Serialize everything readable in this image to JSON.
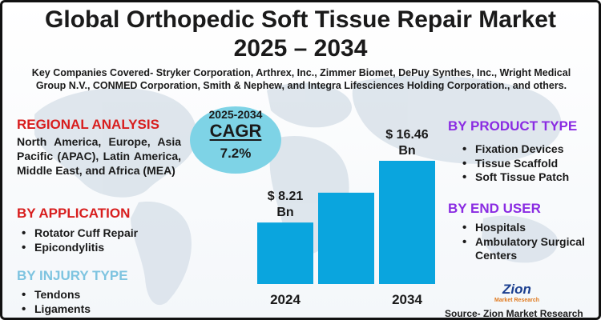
{
  "header": {
    "title_line1": "Global Orthopedic Soft Tissue Repair Market",
    "title_line2": "2025 – 2034",
    "subtitle": "Key Companies Covered- Stryker Corporation, Arthrex, Inc., Zimmer Biomet, DePuy Synthes, Inc., Wright Medical Group N.V., CONMED Corporation, Smith & Nephew, and Integra Lifesciences Holding Corporation., and others."
  },
  "regional": {
    "heading": "REGIONAL ANALYSIS",
    "text": "North America, Europe, Asia Pacific (APAC), Latin America, Middle East, and Africa (MEA)"
  },
  "application": {
    "heading": "BY APPLICATION",
    "items": [
      "Rotator Cuff Repair",
      "Epicondylitis"
    ]
  },
  "injury": {
    "heading": "BY INJURY TYPE",
    "items": [
      "Tendons",
      "Ligaments"
    ]
  },
  "product": {
    "heading": "BY PRODUCT TYPE",
    "items": [
      "Fixation Devices",
      "Tissue Scaffold",
      "Soft Tissue Patch"
    ]
  },
  "end_user": {
    "heading": "BY END USER",
    "items": [
      "Hospitals",
      "Ambulatory Surgical Centers"
    ]
  },
  "cagr": {
    "period": "2025-2034",
    "label": "CAGR",
    "value": "7.2%"
  },
  "colors": {
    "bar": "#0aa5de",
    "heading_red": "#d81e1e",
    "heading_blue": "#7ec4e0",
    "heading_purple": "#8a2be2",
    "cagr_bubble": "#7ed3e6"
  },
  "icons": [
    "world-map-background",
    "zion-logo"
  ],
  "logo": {
    "brand": "Zion",
    "tagline": "Market Research"
  },
  "source": "Source- Zion Market Research",
  "chart_data": {
    "type": "bar",
    "categories": [
      "2024",
      "",
      "2034"
    ],
    "values": [
      8.21,
      12.2,
      16.46
    ],
    "data_labels": [
      "$ 8.21\nBn",
      "",
      "$ 16.46\nBn"
    ],
    "title": "",
    "xlabel": "",
    "ylabel": "",
    "ylim": [
      0,
      16.46
    ],
    "grid": false,
    "legend": "none"
  }
}
